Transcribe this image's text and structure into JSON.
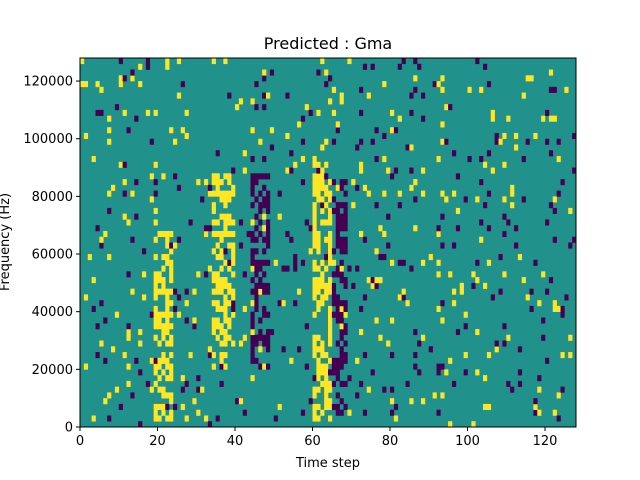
{
  "chart_data": {
    "type": "heatmap",
    "title": "Predicted : Gma",
    "xlabel": "Time step",
    "ylabel": "Frequency (Hz)",
    "xlim": [
      0,
      128
    ],
    "ylim": [
      0,
      128000
    ],
    "x_ticks": [
      0,
      20,
      40,
      60,
      80,
      100,
      120
    ],
    "y_ticks": [
      0,
      20000,
      40000,
      60000,
      80000,
      100000,
      120000
    ],
    "x_tick_labels": [
      "0",
      "20",
      "40",
      "60",
      "80",
      "100",
      "120"
    ],
    "y_tick_labels": [
      "0",
      "20000",
      "40000",
      "60000",
      "80000",
      "100000",
      "120000"
    ],
    "value_levels": [
      -1,
      0,
      1
    ],
    "colors": {
      "low": "#440154",
      "mid": "#21918c",
      "high": "#fde725"
    },
    "grid": false,
    "n_freq_bins": 64,
    "bright_bands": [
      {
        "x_start": 19,
        "x_end": 23,
        "y_start": 2000,
        "y_end": 66000
      },
      {
        "x_start": 34,
        "x_end": 39,
        "y_start": 20000,
        "y_end": 86000
      },
      {
        "x_start": 60,
        "x_end": 64,
        "y_start": 2000,
        "y_end": 90000
      }
    ],
    "dark_bands": [
      {
        "x_start": 44,
        "x_end": 48,
        "y_start": 20000,
        "y_end": 86000
      },
      {
        "x_start": 65,
        "x_end": 68,
        "y_start": 4000,
        "y_end": 84000
      }
    ]
  }
}
